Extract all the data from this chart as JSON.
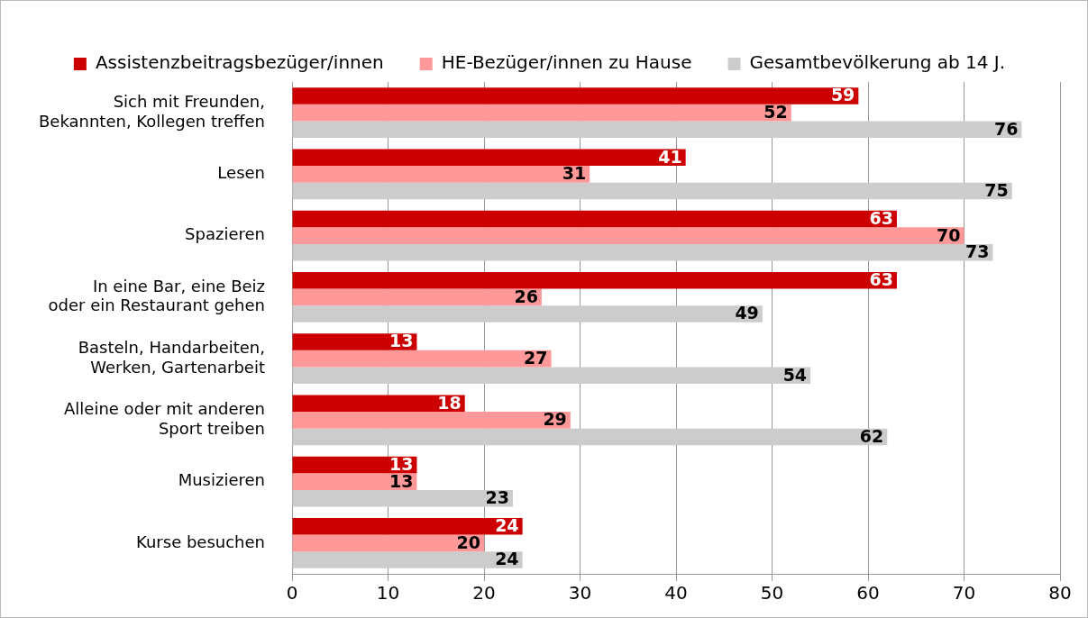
{
  "chart_data": {
    "type": "bar",
    "orientation": "horizontal",
    "categories": [
      "Sich mit Freunden,\nBekannten, Kollegen treffen",
      "Lesen",
      "Spazieren",
      "In eine Bar, eine Beiz\noder ein Restaurant gehen",
      "Basteln, Handarbeiten,\nWerken, Gartenarbeit",
      "Alleine oder mit anderen\nSport treiben",
      "Musizieren",
      "Kurse besuchen"
    ],
    "series": [
      {
        "name": "Assistenzbeitragsbezüger/innen",
        "color": "#cc0000",
        "values": [
          59,
          41,
          63,
          63,
          13,
          18,
          13,
          24
        ]
      },
      {
        "name": "HE-Bezüger/innen zu Hause",
        "color": "#ff9999",
        "values": [
          52,
          31,
          70,
          26,
          27,
          29,
          13,
          20
        ]
      },
      {
        "name": "Gesamtbevölkerung ab 14 J.",
        "color": "#cccccc",
        "values": [
          76,
          75,
          73,
          49,
          54,
          62,
          23,
          24
        ]
      }
    ],
    "xlim": [
      0,
      80
    ],
    "xticks": [
      0,
      10,
      20,
      30,
      40,
      50,
      60,
      70,
      80
    ],
    "grid": "x",
    "legend": "top",
    "data_labels": true
  }
}
